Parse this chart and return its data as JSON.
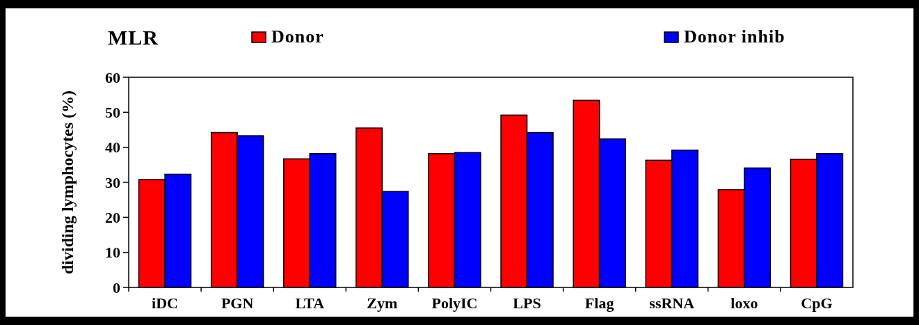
{
  "chart_data": {
    "type": "bar",
    "title": "MLR",
    "ylabel": "dividing lymphocytes (%)",
    "categories": [
      "iDC",
      "PGN",
      "LTA",
      "Zym",
      "PolyIC",
      "LPS",
      "Flag",
      "ssRNA",
      "loxo",
      "CpG"
    ],
    "series": [
      {
        "name": "Donor",
        "color": "#ff0000",
        "values": [
          30.8,
          44.2,
          36.7,
          45.5,
          38.2,
          49.2,
          53.4,
          36.3,
          27.9,
          36.6
        ]
      },
      {
        "name": "Donor inhib",
        "color": "#0000ff",
        "values": [
          32.3,
          43.3,
          38.2,
          27.4,
          38.5,
          44.2,
          42.4,
          39.2,
          34.1,
          38.2
        ]
      }
    ],
    "ylim": [
      0,
      60
    ],
    "yticks": [
      0,
      10,
      20,
      30,
      40,
      50,
      60
    ],
    "grid": false,
    "legend": "top"
  }
}
